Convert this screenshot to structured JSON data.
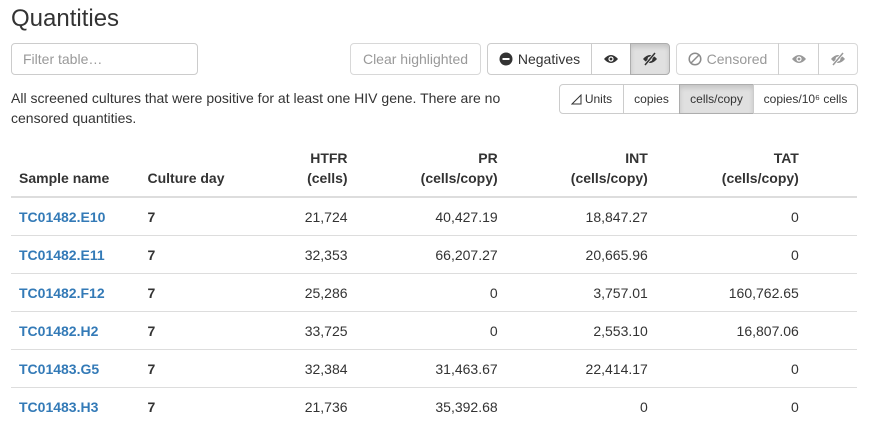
{
  "title": "Quantities",
  "filter": {
    "placeholder": "Filter table…"
  },
  "buttons": {
    "clear_highlighted": "Clear highlighted",
    "negatives": "Negatives",
    "censored": "Censored"
  },
  "description": "All screened cultures that were positive for at least one HIV gene. There are no censored quantities.",
  "units": {
    "label": "Units",
    "options": [
      "copies",
      "cells/copy",
      "copies/10⁶ cells"
    ],
    "selected": "cells/copy"
  },
  "table": {
    "headers": {
      "sample": "Sample name",
      "day": "Culture day",
      "htfr": "HTFR",
      "htfr_unit": "(cells)",
      "pr": "PR",
      "pr_unit": "(cells/copy)",
      "int": "INT",
      "int_unit": "(cells/copy)",
      "tat": "TAT",
      "tat_unit": "(cells/copy)"
    },
    "rows": [
      {
        "sample": "TC01482.E10",
        "day": "7",
        "htfr": "21,724",
        "pr": "40,427.19",
        "int": "18,847.27",
        "tat": "0"
      },
      {
        "sample": "TC01482.E11",
        "day": "7",
        "htfr": "32,353",
        "pr": "66,207.27",
        "int": "20,665.96",
        "tat": "0"
      },
      {
        "sample": "TC01482.F12",
        "day": "7",
        "htfr": "25,286",
        "pr": "0",
        "int": "3,757.01",
        "tat": "160,762.65"
      },
      {
        "sample": "TC01482.H2",
        "day": "7",
        "htfr": "33,725",
        "pr": "0",
        "int": "2,553.10",
        "tat": "16,807.06"
      },
      {
        "sample": "TC01483.G5",
        "day": "7",
        "htfr": "32,384",
        "pr": "31,463.67",
        "int": "22,414.17",
        "tat": "0"
      },
      {
        "sample": "TC01483.H3",
        "day": "7",
        "htfr": "21,736",
        "pr": "35,392.68",
        "int": "0",
        "tat": "0"
      }
    ]
  },
  "colors": {
    "link": "#337ab7",
    "active_button": "#e0e0e0"
  }
}
